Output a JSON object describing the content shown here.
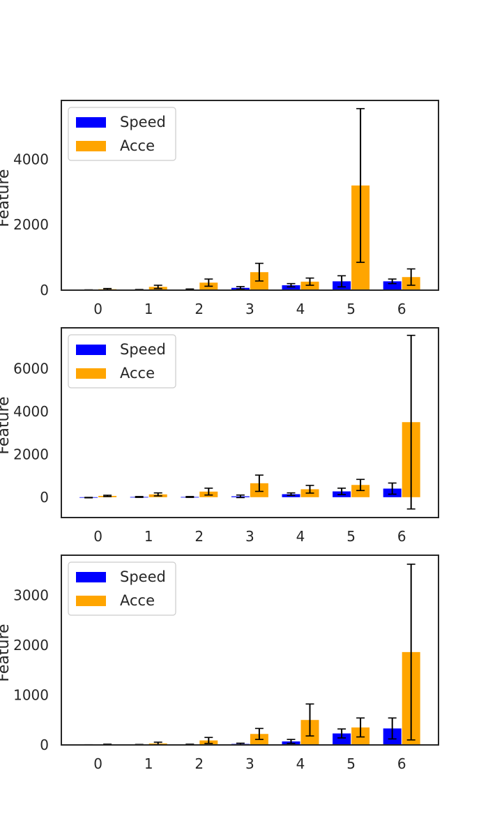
{
  "chart_data": [
    {
      "type": "bar",
      "ylabel": "Feature",
      "categories": [
        "0",
        "1",
        "2",
        "3",
        "4",
        "5",
        "6"
      ],
      "ylim": [
        0,
        5800
      ],
      "yticks": [
        0,
        2000,
        4000
      ],
      "legend": "top-left",
      "grid": false,
      "series": [
        {
          "name": "Speed",
          "color": "#0000ff",
          "values": [
            5,
            10,
            20,
            70,
            150,
            270,
            270
          ],
          "errors": [
            5,
            10,
            15,
            40,
            50,
            170,
            70
          ]
        },
        {
          "name": "Acce",
          "color": "#ffa500",
          "values": [
            30,
            100,
            230,
            550,
            260,
            3200,
            400
          ],
          "errors": [
            20,
            50,
            110,
            270,
            110,
            2350,
            250
          ]
        }
      ]
    },
    {
      "type": "bar",
      "ylabel": "Feature",
      "categories": [
        "0",
        "1",
        "2",
        "3",
        "4",
        "5",
        "6"
      ],
      "ylim": [
        -950,
        7900
      ],
      "yticks": [
        0,
        2000,
        4000,
        6000
      ],
      "legend": "top-left",
      "grid": false,
      "series": [
        {
          "name": "Speed",
          "color": "#0000ff",
          "values": [
            -20,
            10,
            10,
            40,
            140,
            270,
            400
          ],
          "errors": [
            10,
            20,
            20,
            60,
            60,
            150,
            260
          ]
        },
        {
          "name": "Acce",
          "color": "#ffa500",
          "values": [
            60,
            130,
            260,
            650,
            370,
            570,
            3500
          ],
          "errors": [
            30,
            70,
            160,
            380,
            180,
            260,
            4050
          ]
        }
      ]
    },
    {
      "type": "bar",
      "ylabel": "Feature",
      "categories": [
        "0",
        "1",
        "2",
        "3",
        "4",
        "5",
        "6"
      ],
      "ylim": [
        0,
        3800
      ],
      "yticks": [
        0,
        1000,
        2000,
        3000
      ],
      "legend": "top-left",
      "grid": false,
      "series": [
        {
          "name": "Speed",
          "color": "#0000ff",
          "values": [
            2,
            5,
            10,
            20,
            70,
            230,
            330
          ],
          "errors": [
            2,
            5,
            5,
            15,
            40,
            90,
            210
          ]
        },
        {
          "name": "Acce",
          "color": "#ffa500",
          "values": [
            10,
            30,
            90,
            220,
            500,
            350,
            1860
          ],
          "errors": [
            5,
            25,
            60,
            110,
            320,
            190,
            1760
          ]
        }
      ]
    }
  ]
}
